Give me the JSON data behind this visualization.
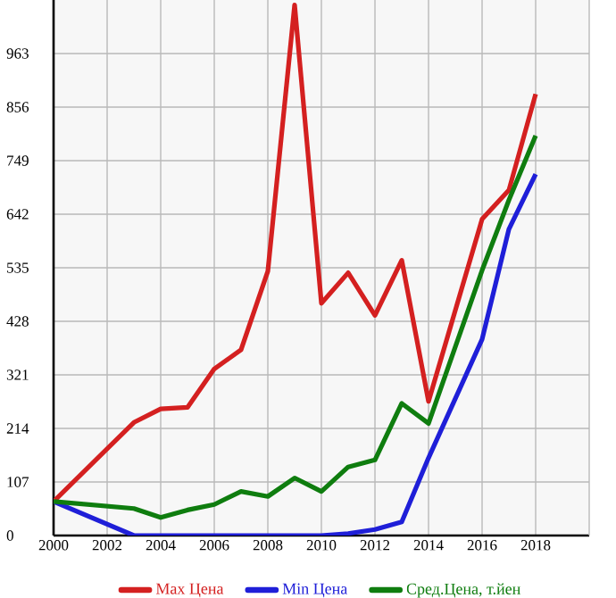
{
  "chart_data": {
    "type": "line",
    "xlim": [
      2000,
      2020
    ],
    "xticks": [
      2000,
      2002,
      2004,
      2006,
      2008,
      2010,
      2012,
      2014,
      2016,
      2018
    ],
    "ylim": [
      0,
      1070
    ],
    "yticks": [
      0,
      107,
      214,
      321,
      428,
      535,
      642,
      749,
      856,
      963
    ],
    "grid": true,
    "legend": "bottom",
    "marker": "none",
    "line_style": "solid",
    "series": [
      {
        "name": "Max Цена",
        "color": "#d42020",
        "x": [
          2000,
          2003,
          2004,
          2005,
          2006,
          2007,
          2008,
          2009,
          2010,
          2011,
          2012,
          2013,
          2014,
          2016,
          2017,
          2018
        ],
        "values": [
          68,
          226,
          253,
          256,
          333,
          371,
          528,
          1060,
          464,
          525,
          440,
          550,
          268,
          632,
          690,
          882
        ]
      },
      {
        "name": "Min Цена",
        "color": "#1f1fd8",
        "x": [
          2000,
          2003,
          2004,
          2005,
          2006,
          2007,
          2008,
          2009,
          2010,
          2011,
          2012,
          2013,
          2014,
          2016,
          2017,
          2018
        ],
        "values": [
          68,
          0,
          0,
          0,
          0,
          0,
          0,
          0,
          0,
          4,
          12,
          27,
          155,
          392,
          612,
          722
        ]
      },
      {
        "name": "Сред.Цена, т.йен",
        "color": "#0f7d0f",
        "x": [
          2000,
          2003,
          2004,
          2005,
          2006,
          2007,
          2008,
          2009,
          2010,
          2011,
          2012,
          2013,
          2014,
          2016,
          2017,
          2018
        ],
        "values": [
          68,
          54,
          36,
          51,
          62,
          88,
          78,
          115,
          88,
          137,
          151,
          264,
          224,
          530,
          670,
          799
        ]
      }
    ]
  }
}
